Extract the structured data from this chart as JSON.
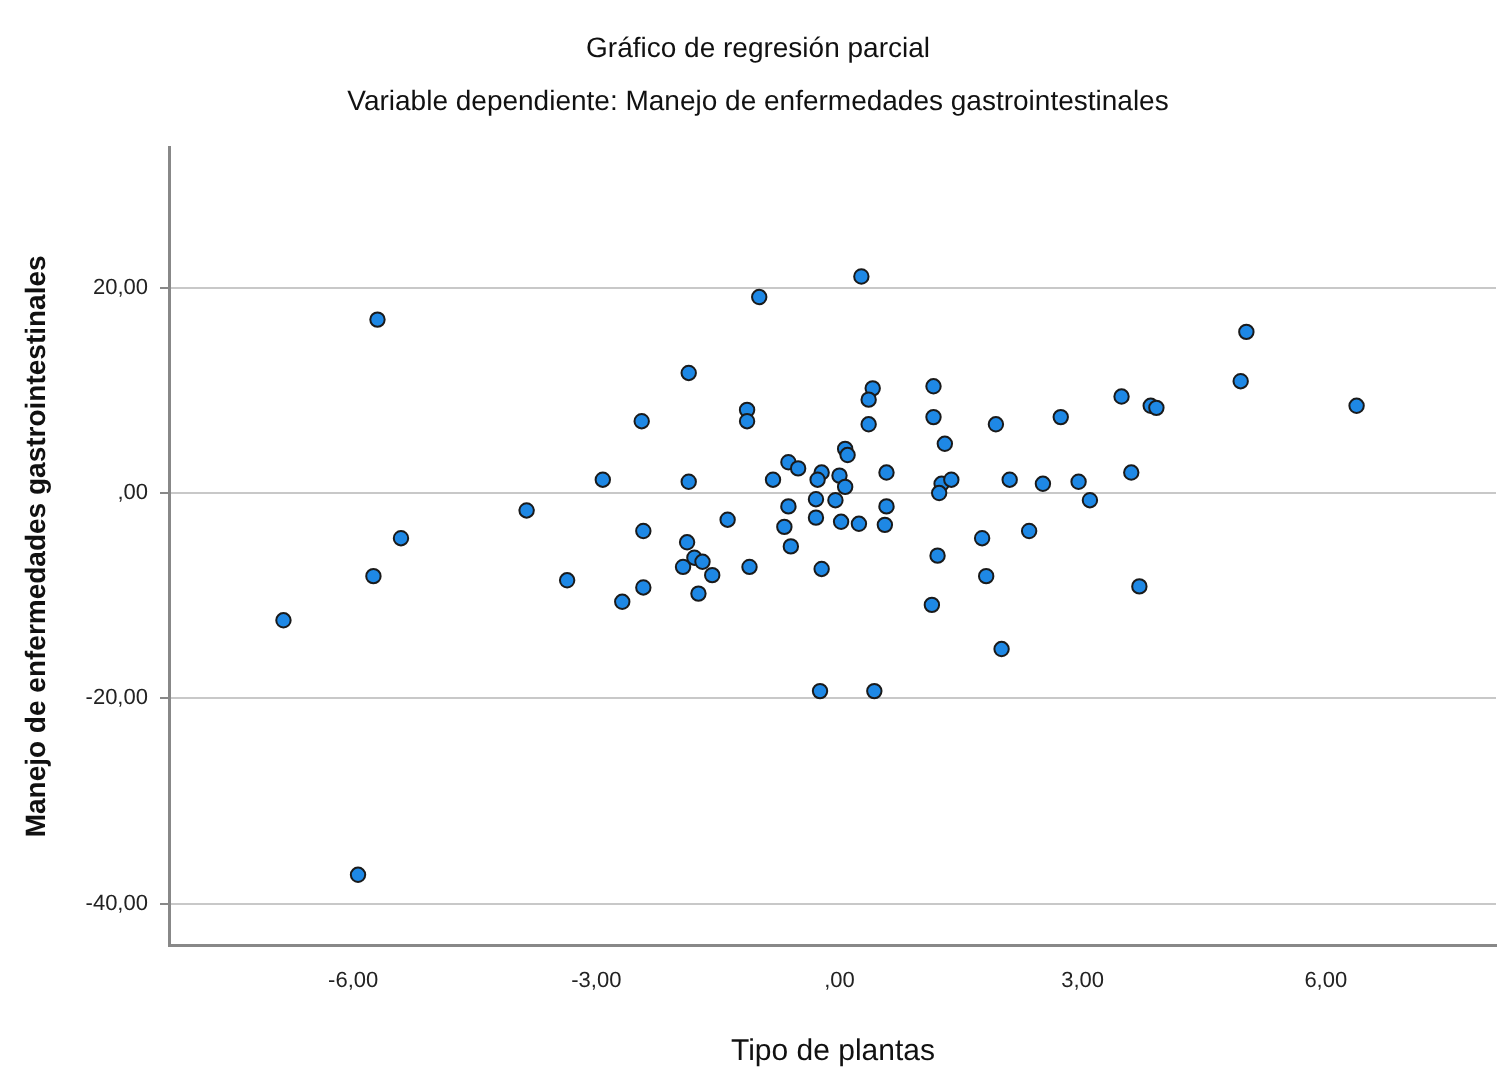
{
  "chart_data": {
    "type": "scatter",
    "title": "Gráfico de regresión parcial",
    "subtitle": "Variable dependiente: Manejo de enfermedades gastrointestinales",
    "xlabel": "Tipo de plantas",
    "ylabel": "Manejo de enfermedades gastrointestinales",
    "xlim": [
      -8.26,
      8.1
    ],
    "ylim": [
      -44.1,
      33.7
    ],
    "xticks": [
      {
        "value": -6,
        "label": "-6,00"
      },
      {
        "value": -3,
        "label": "-3,00"
      },
      {
        "value": 0,
        "label": ",00"
      },
      {
        "value": 3,
        "label": "3,00"
      },
      {
        "value": 6,
        "label": "6,00"
      }
    ],
    "yticks": [
      {
        "value": -40,
        "label": "-40,00"
      },
      {
        "value": -20,
        "label": "-20,00"
      },
      {
        "value": 0,
        "label": ",00"
      },
      {
        "value": 20,
        "label": "20,00"
      }
    ],
    "grid": "y",
    "legend": false,
    "marker": "circle",
    "series": [
      {
        "color": "#1e88e5",
        "x": [
          -5.7,
          -2.44,
          -2.92,
          -3.86,
          -2.42,
          -5.41,
          -5.75,
          -3.36,
          -2.42,
          -2.68,
          -6.86,
          -5.94,
          0.27,
          -0.99,
          -1.86,
          -1.14,
          -1.14,
          0.41,
          0.36,
          0.36,
          1.16,
          1.16,
          1.3,
          1.93,
          2.73,
          0.07,
          0.1,
          -0.63,
          -0.51,
          -0.22,
          -0.27,
          0.0,
          0.07,
          0.58,
          -0.82,
          -1.86,
          1.26,
          1.38,
          1.23,
          2.1,
          2.51,
          2.95,
          3.09,
          -0.63,
          -0.29,
          -0.05,
          0.58,
          -1.38,
          -0.68,
          -0.29,
          0.02,
          0.24,
          0.56,
          -0.6,
          -1.88,
          -1.79,
          -1.69,
          -1.93,
          -1.57,
          -1.11,
          -0.22,
          1.21,
          1.76,
          2.34,
          1.81,
          -1.74,
          1.14,
          2.0,
          -0.24,
          0.43,
          5.02,
          4.95,
          3.48,
          3.84,
          3.91,
          6.38,
          3.6,
          3.7
        ],
        "values": [
          16.9,
          7.0,
          1.3,
          -1.7,
          -3.7,
          -4.4,
          -8.1,
          -8.5,
          -9.2,
          -10.6,
          -12.4,
          -37.2,
          21.1,
          19.1,
          11.7,
          8.1,
          7.0,
          10.2,
          9.1,
          6.7,
          10.4,
          7.4,
          4.8,
          6.7,
          7.4,
          4.3,
          3.7,
          3.0,
          2.4,
          2.0,
          1.3,
          1.7,
          0.6,
          2.0,
          1.3,
          1.1,
          0.9,
          1.3,
          0.0,
          1.3,
          0.9,
          1.1,
          -0.7,
          -1.3,
          -0.6,
          -0.7,
          -1.3,
          -2.6,
          -3.3,
          -2.4,
          -2.8,
          -3.0,
          -3.1,
          -5.2,
          -4.8,
          -6.3,
          -6.7,
          -7.2,
          -8.0,
          -7.2,
          -7.4,
          -6.1,
          -4.4,
          -3.7,
          -8.1,
          -9.8,
          -10.9,
          -15.2,
          -19.3,
          -19.3,
          15.7,
          10.9,
          9.4,
          8.5,
          8.3,
          8.5,
          2.0,
          -9.1
        ]
      }
    ]
  }
}
